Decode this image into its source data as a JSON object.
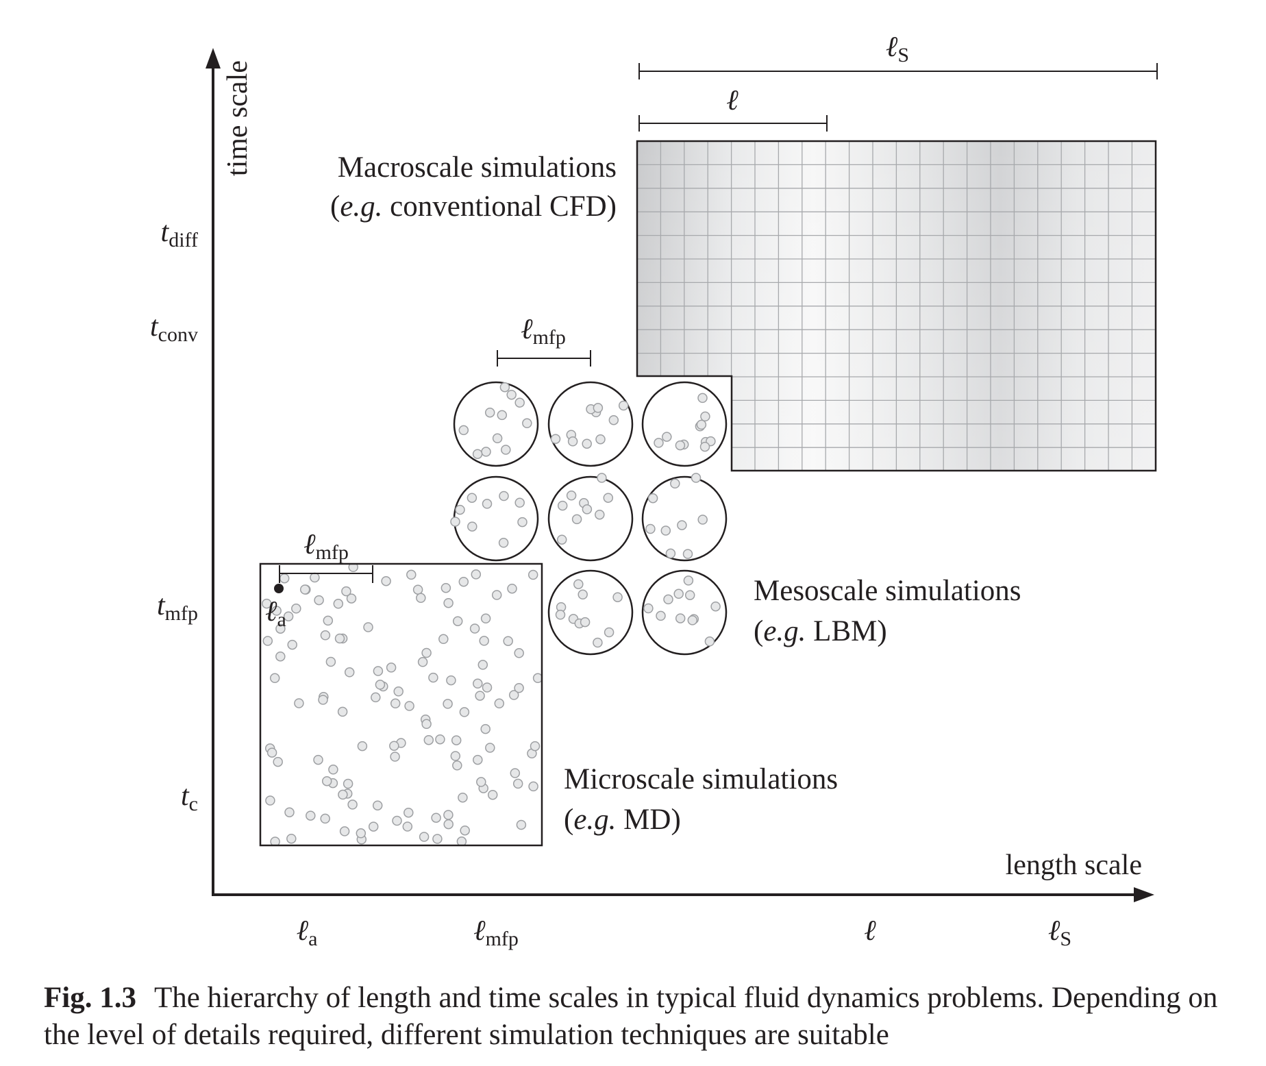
{
  "axes": {
    "y_label": "time scale",
    "x_label": "length scale",
    "y_ticks": [
      {
        "sym": "t",
        "sub": "diff"
      },
      {
        "sym": "t",
        "sub": "conv"
      },
      {
        "sym": "t",
        "sub": "mfp"
      },
      {
        "sym": "t",
        "sub": "c"
      }
    ],
    "x_ticks": [
      {
        "sym": "ℓ",
        "sub": "a"
      },
      {
        "sym": "ℓ",
        "sub": "mfp"
      },
      {
        "sym": "ℓ",
        "sub": ""
      },
      {
        "sym": "ℓ",
        "sub": "S"
      }
    ]
  },
  "macro": {
    "title": "Macroscale simulations",
    "example_prefix": "(",
    "example_eg": "e.g.",
    "example_rest": " conventional CFD)",
    "dim_outer": {
      "sym": "ℓ",
      "sub": "S"
    },
    "dim_inner": {
      "sym": "ℓ",
      "sub": ""
    }
  },
  "meso": {
    "title": "Mesoscale simulations",
    "example_prefix": "(",
    "example_eg": "e.g.",
    "example_rest": " LBM)",
    "dim": {
      "sym": "ℓ",
      "sub": "mfp"
    }
  },
  "micro": {
    "title": "Microscale simulations",
    "example_prefix": "(",
    "example_eg": "e.g.",
    "example_rest": " MD)",
    "dim_mfp": {
      "sym": "ℓ",
      "sub": "mfp"
    },
    "dim_atom": {
      "sym": "ℓ",
      "sub": "a"
    }
  },
  "caption": {
    "label": "Fig. 1.3",
    "text": "The hierarchy of length and time scales in typical fluid dynamics problems. Depending on the level of details required, different simulation techniques are suitable"
  },
  "colors": {
    "ink": "#231f20",
    "grid_line": "#a7a9ac",
    "particle_fill": "#e6e7e8",
    "particle_stroke": "#9d9fa2"
  }
}
